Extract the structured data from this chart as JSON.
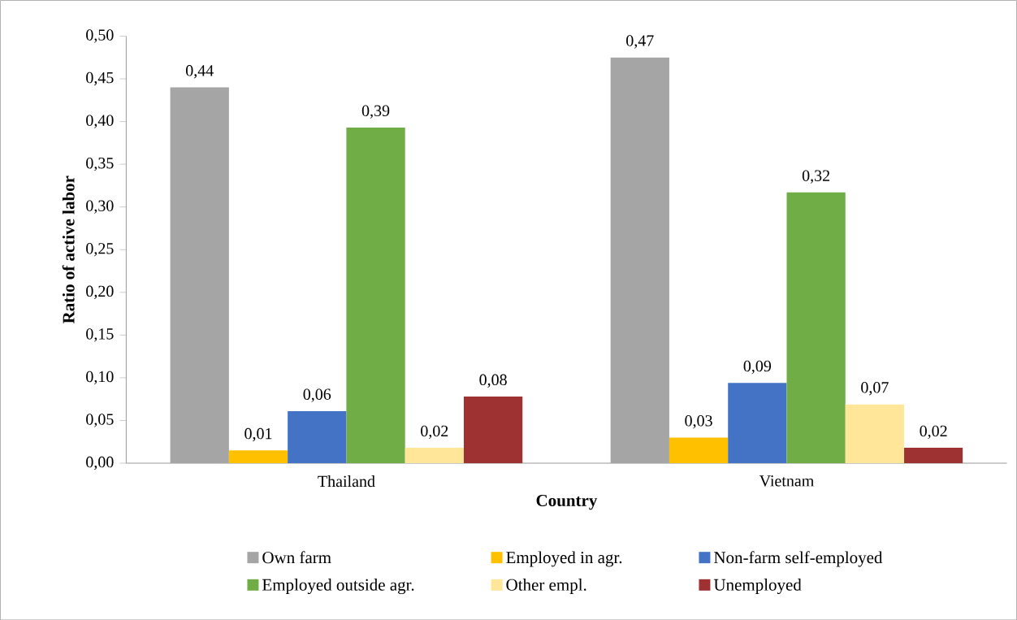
{
  "chart_data": {
    "type": "bar",
    "xlabel": "Country",
    "ylabel": "Ratio of active labor",
    "categories": [
      "Thailand",
      "Vietnam"
    ],
    "series": [
      {
        "name": "Own farm",
        "color": "#a5a5a5",
        "values": [
          0.44,
          0.475
        ],
        "value_labels": [
          "0,44",
          "0,47"
        ]
      },
      {
        "name": "Employed in agr.",
        "color": "#ffc000",
        "values": [
          0.015,
          0.03
        ],
        "value_labels": [
          "0,01",
          "0,03"
        ]
      },
      {
        "name": "Non-farm self-employed",
        "color": "#4472c4",
        "values": [
          0.061,
          0.094
        ],
        "value_labels": [
          "0,06",
          "0,09"
        ]
      },
      {
        "name": "Employed outside agr.",
        "color": "#70ad47",
        "values": [
          0.393,
          0.317
        ],
        "value_labels": [
          "0,39",
          "0,32"
        ]
      },
      {
        "name": "Other empl.",
        "color": "#ffe699",
        "values": [
          0.018,
          0.069
        ],
        "value_labels": [
          "0,02",
          "0,07"
        ]
      },
      {
        "name": "Unemployed",
        "color": "#9e3131",
        "values": [
          0.078,
          0.018
        ],
        "value_labels": [
          "0,08",
          "0,02"
        ]
      }
    ],
    "ylim": [
      0,
      0.5
    ],
    "yticks": [
      {
        "value": 0,
        "label": "0,00"
      },
      {
        "value": 0.05,
        "label": "0,05"
      },
      {
        "value": 0.1,
        "label": "0,10"
      },
      {
        "value": 0.15,
        "label": "0,15"
      },
      {
        "value": 0.2,
        "label": "0,20"
      },
      {
        "value": 0.25,
        "label": "0,25"
      },
      {
        "value": 0.3,
        "label": "0,30"
      },
      {
        "value": 0.35,
        "label": "0,35"
      },
      {
        "value": 0.4,
        "label": "0,40"
      },
      {
        "value": 0.45,
        "label": "0,45"
      },
      {
        "value": 0.5,
        "label": "0,50"
      }
    ],
    "grid": false,
    "legend": "bottom"
  }
}
